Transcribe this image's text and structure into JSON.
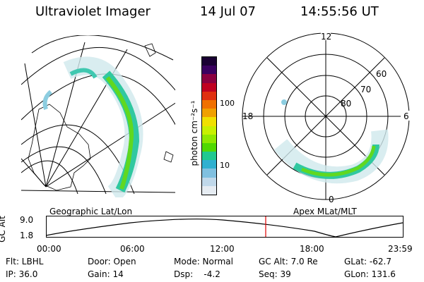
{
  "header": {
    "title": "Ultraviolet Imager",
    "date": "14 Jul 07",
    "time": "14:55:56 UT"
  },
  "left_panel": {
    "caption": "Geographic Lat/Lon"
  },
  "right_panel": {
    "caption": "Apex MLat/MLT",
    "mlt_labels": {
      "top": "12",
      "right": "6",
      "bottom": "0",
      "left": "18"
    },
    "lat_labels": [
      "60",
      "70",
      "80"
    ]
  },
  "colorbar": {
    "unit_label": "photon cm⁻²s⁻¹",
    "ticks": [
      "100",
      "10"
    ],
    "colors": [
      "#1a0033",
      "#3a0060",
      "#8a0040",
      "#c00020",
      "#e03010",
      "#f07000",
      "#f0a000",
      "#f0e000",
      "#c8f000",
      "#90e800",
      "#50d800",
      "#20c890",
      "#30b0d0",
      "#80c0e0",
      "#c0d8ea",
      "#e6ecf2"
    ]
  },
  "altitude_strip": {
    "axis_label": "GC Alt",
    "y_ticks": [
      "9.0",
      "1.8"
    ],
    "x_ticks": [
      "00:00",
      "06:00",
      "12:00",
      "18:00",
      "23:59"
    ],
    "marker_color": "#e00000"
  },
  "info": {
    "row1": [
      "Flt: LBHL",
      "Door: Open",
      "Mode: Normal",
      "GC Alt: 7.0 Re",
      "GLat: -62.7"
    ],
    "row2": [
      "IP: 36.0",
      "Gain: 14",
      "Dsp:    -4.2",
      "Seq: 39",
      "GLon: 131.6"
    ]
  }
}
